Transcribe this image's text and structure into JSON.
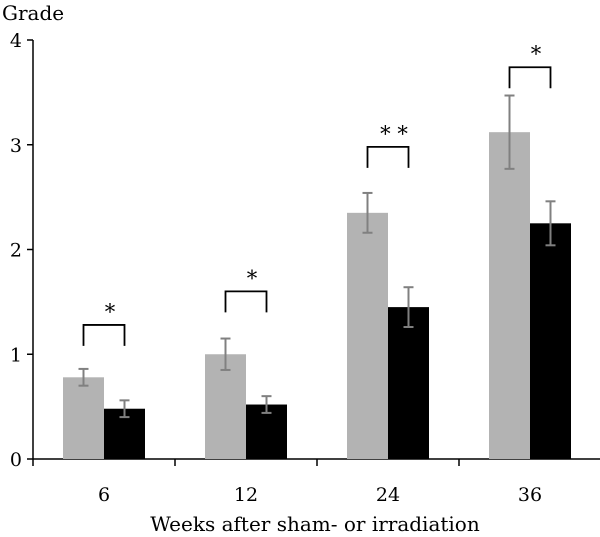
{
  "chart_data": {
    "type": "bar",
    "ylabel": "Grade",
    "xlabel": "Weeks after sham- or irradiation",
    "categories": [
      "6",
      "12",
      "24",
      "36"
    ],
    "ylim": [
      0,
      4
    ],
    "yticks": [
      "0",
      "1",
      "2",
      "3",
      "4"
    ],
    "grid": false,
    "legend": "none",
    "series": [
      {
        "color": "#b3b3b3",
        "errorbar_color": "#808080",
        "values": [
          0.78,
          1.0,
          2.35,
          3.12
        ],
        "errors": [
          0.08,
          0.15,
          0.19,
          0.35
        ]
      },
      {
        "color": "#000000",
        "errorbar_color": "#808080",
        "values": [
          0.48,
          0.52,
          1.45,
          2.25
        ],
        "errors": [
          0.08,
          0.08,
          0.19,
          0.21
        ]
      }
    ],
    "significance": [
      {
        "category": "6",
        "label": "*",
        "level": 1.28
      },
      {
        "category": "12",
        "label": "*",
        "level": 1.6
      },
      {
        "category": "24",
        "label": "**",
        "level": 2.98
      },
      {
        "category": "36",
        "label": "*",
        "level": 3.74
      }
    ]
  }
}
